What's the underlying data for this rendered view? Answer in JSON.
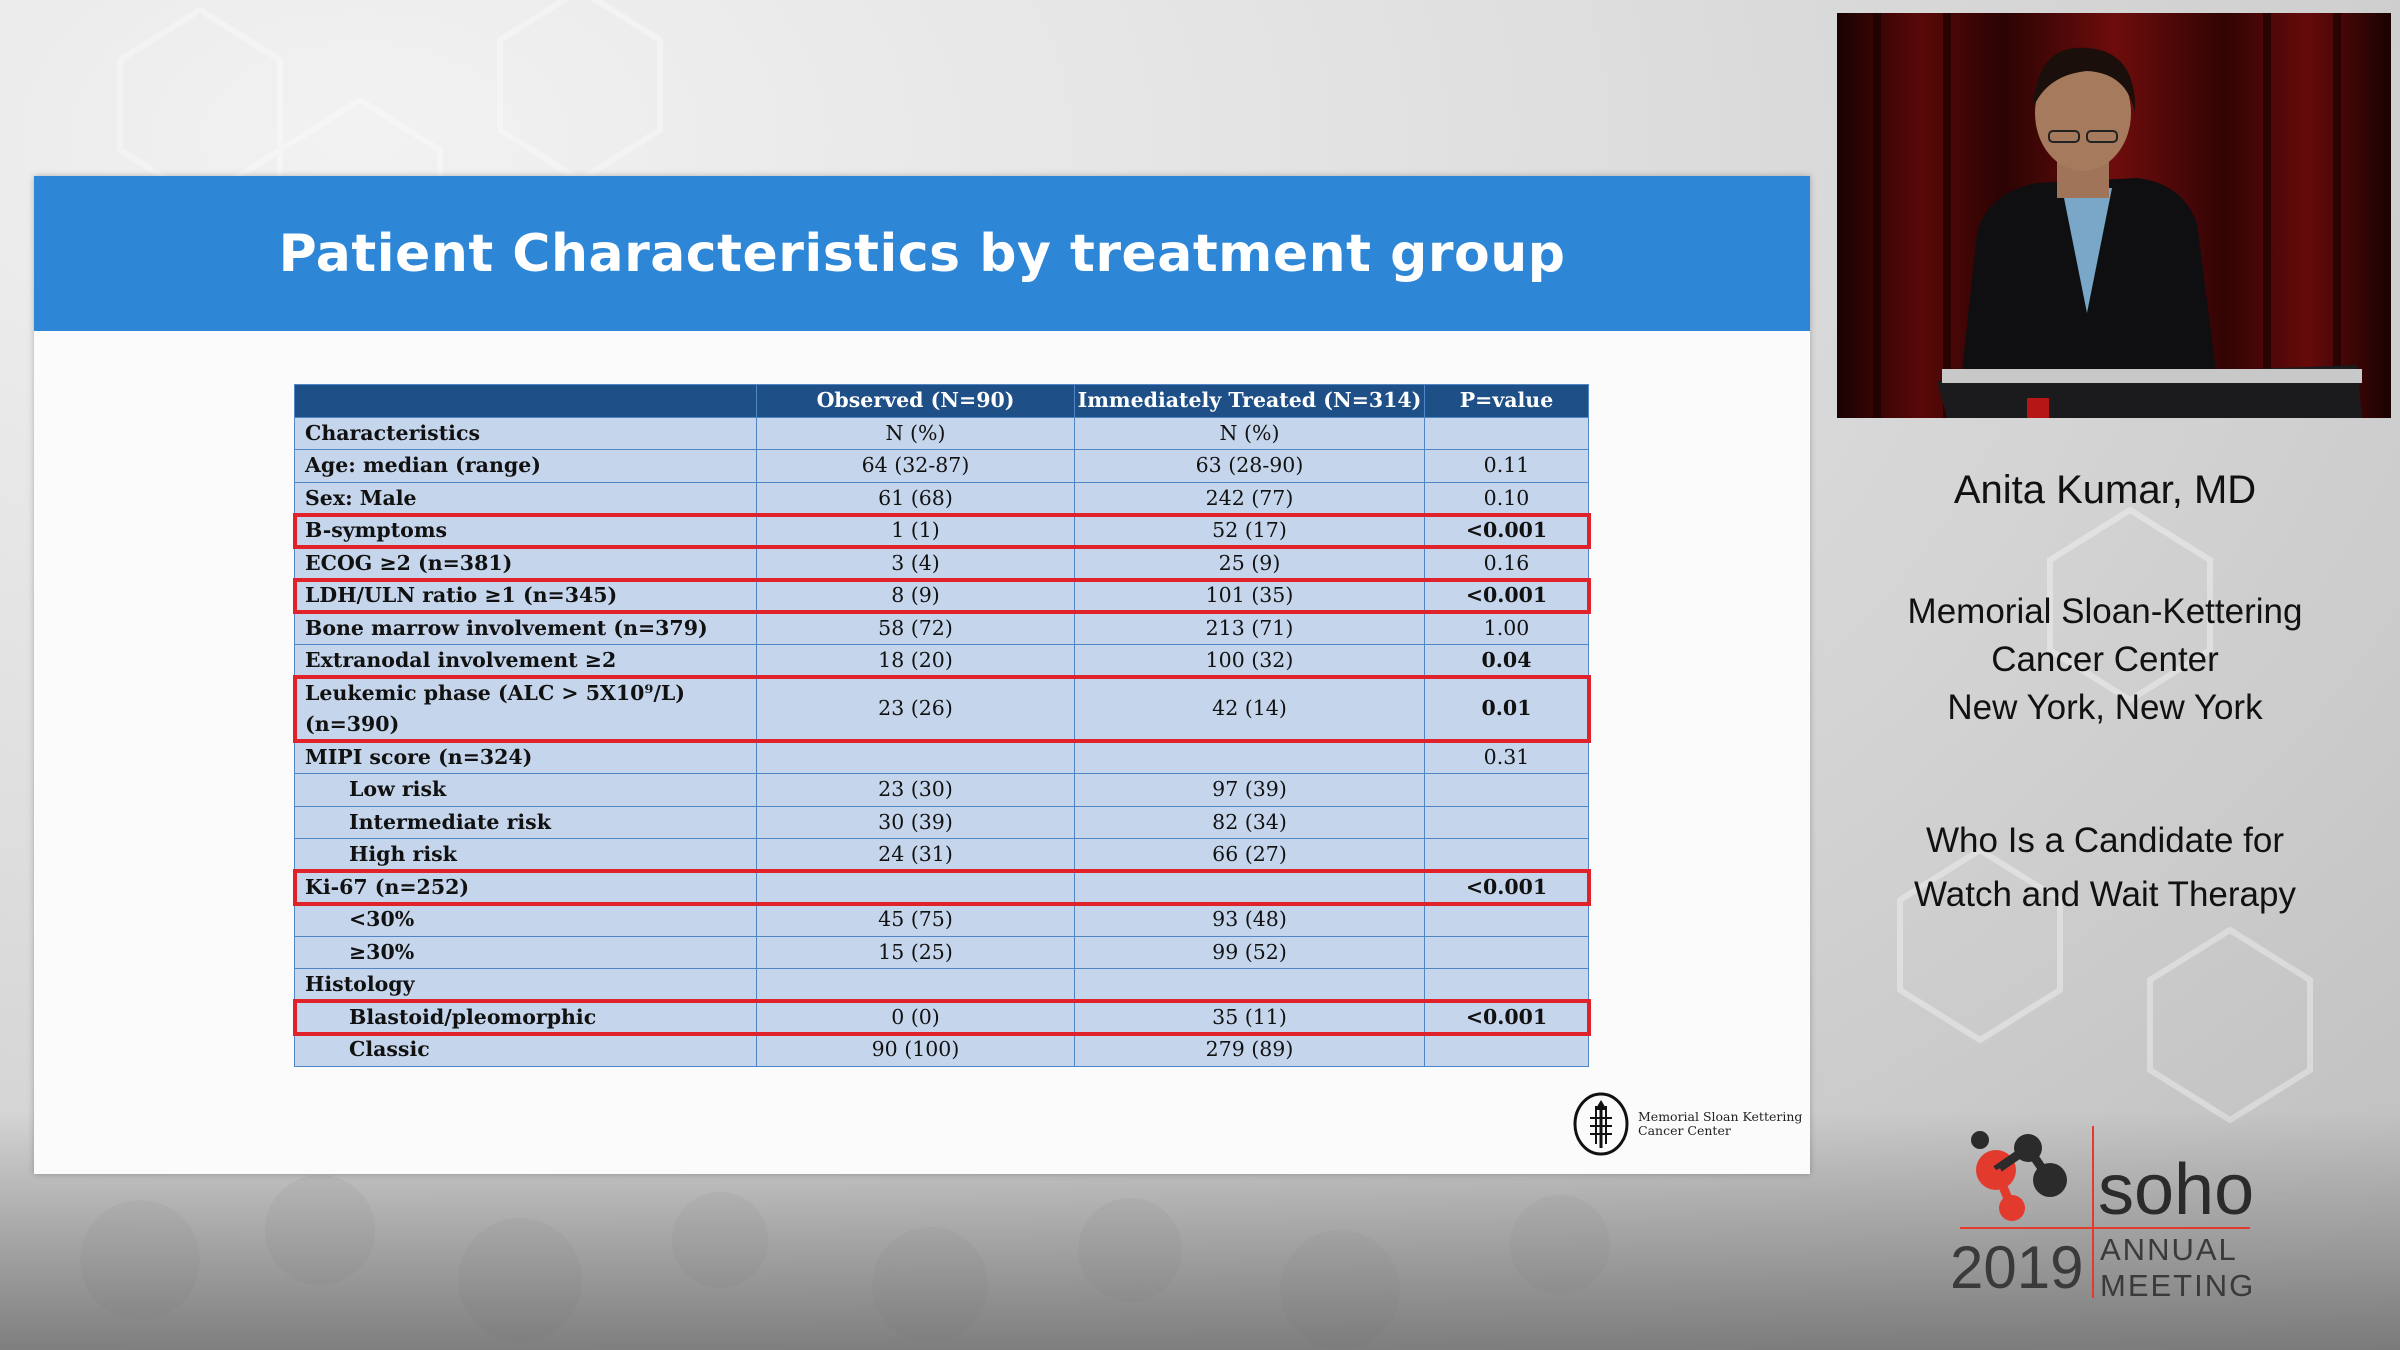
{
  "slide": {
    "title": "Patient Characteristics by treatment group",
    "table": {
      "headers": [
        "",
        "Observed (N=90)",
        "Immediately Treated (N=314)",
        "P=value"
      ],
      "rows": [
        {
          "label": "Characteristics",
          "observed": "N (%)",
          "treated": "N (%)",
          "p": "",
          "indent": false,
          "p_bold": false,
          "highlight": false
        },
        {
          "label": "Age: median (range)",
          "observed": "64 (32-87)",
          "treated": "63 (28-90)",
          "p": "0.11",
          "indent": false,
          "p_bold": false,
          "highlight": false
        },
        {
          "label": "Sex: Male",
          "observed": "61 (68)",
          "treated": "242 (77)",
          "p": "0.10",
          "indent": false,
          "p_bold": false,
          "highlight": false
        },
        {
          "label": "B-symptoms",
          "observed": "1 (1)",
          "treated": "52 (17)",
          "p": "<0.001",
          "indent": false,
          "p_bold": true,
          "highlight": true
        },
        {
          "label": "ECOG ≥2 (n=381)",
          "observed": "3 (4)",
          "treated": "25 (9)",
          "p": "0.16",
          "indent": false,
          "p_bold": false,
          "highlight": false
        },
        {
          "label": "LDH/ULN ratio ≥1 (n=345)",
          "observed": "8 (9)",
          "treated": "101 (35)",
          "p": "<0.001",
          "indent": false,
          "p_bold": true,
          "highlight": true
        },
        {
          "label": "Bone marrow involvement (n=379)",
          "observed": "58 (72)",
          "treated": "213 (71)",
          "p": "1.00",
          "indent": false,
          "p_bold": false,
          "highlight": false
        },
        {
          "label": "Extranodal involvement ≥2",
          "observed": "18 (20)",
          "treated": "100 (32)",
          "p": "0.04",
          "indent": false,
          "p_bold": true,
          "highlight": false
        },
        {
          "label": "Leukemic phase (ALC > 5X10⁹/L) (n=390)",
          "observed": "23 (26)",
          "treated": "42 (14)",
          "p": "0.01",
          "indent": false,
          "p_bold": true,
          "highlight": true
        },
        {
          "label": "MIPI score (n=324)",
          "observed": "",
          "treated": "",
          "p": "0.31",
          "indent": false,
          "p_bold": false,
          "highlight": false
        },
        {
          "label": "Low risk",
          "observed": "23 (30)",
          "treated": "97 (39)",
          "p": "",
          "indent": true,
          "p_bold": false,
          "highlight": false
        },
        {
          "label": "Intermediate risk",
          "observed": "30 (39)",
          "treated": "82 (34)",
          "p": "",
          "indent": true,
          "p_bold": false,
          "highlight": false
        },
        {
          "label": "High risk",
          "observed": "24 (31)",
          "treated": "66 (27)",
          "p": "",
          "indent": true,
          "p_bold": false,
          "highlight": false
        },
        {
          "label": "Ki-67 (n=252)",
          "observed": "",
          "treated": "",
          "p": "<0.001",
          "indent": false,
          "p_bold": true,
          "highlight": true
        },
        {
          "label": "<30%",
          "observed": "45 (75)",
          "treated": "93 (48)",
          "p": "",
          "indent": true,
          "p_bold": false,
          "highlight": false
        },
        {
          "label": "≥30%",
          "observed": "15 (25)",
          "treated": "99 (52)",
          "p": "",
          "indent": true,
          "p_bold": false,
          "highlight": false
        },
        {
          "label": "Histology",
          "observed": "",
          "treated": "",
          "p": "",
          "indent": false,
          "p_bold": false,
          "highlight": false
        },
        {
          "label": "Blastoid/pleomorphic",
          "observed": "0 (0)",
          "treated": "35 (11)",
          "p": "<0.001",
          "indent": true,
          "p_bold": true,
          "highlight": true
        },
        {
          "label": "Classic",
          "observed": "90 (100)",
          "treated": "279 (89)",
          "p": "",
          "indent": true,
          "p_bold": false,
          "highlight": false
        }
      ]
    },
    "logo_text": [
      "Memorial Sloan Kettering",
      "Cancer Center"
    ]
  },
  "speaker": {
    "name": "Anita Kumar, MD",
    "affiliation": [
      "Memorial Sloan-Kettering",
      "Cancer Center",
      "New York, New York"
    ],
    "talk_title": [
      "Who Is a Candidate for",
      "Watch and Wait Therapy"
    ]
  },
  "conference": {
    "brand": "soho",
    "year": "2019",
    "line1": "ANNUAL",
    "line2": "MEETING"
  },
  "colors": {
    "header_blue": "#2e86d6",
    "table_header": "#1e4f86",
    "table_cell": "#c5d5eb",
    "highlight": "#e0222a"
  }
}
